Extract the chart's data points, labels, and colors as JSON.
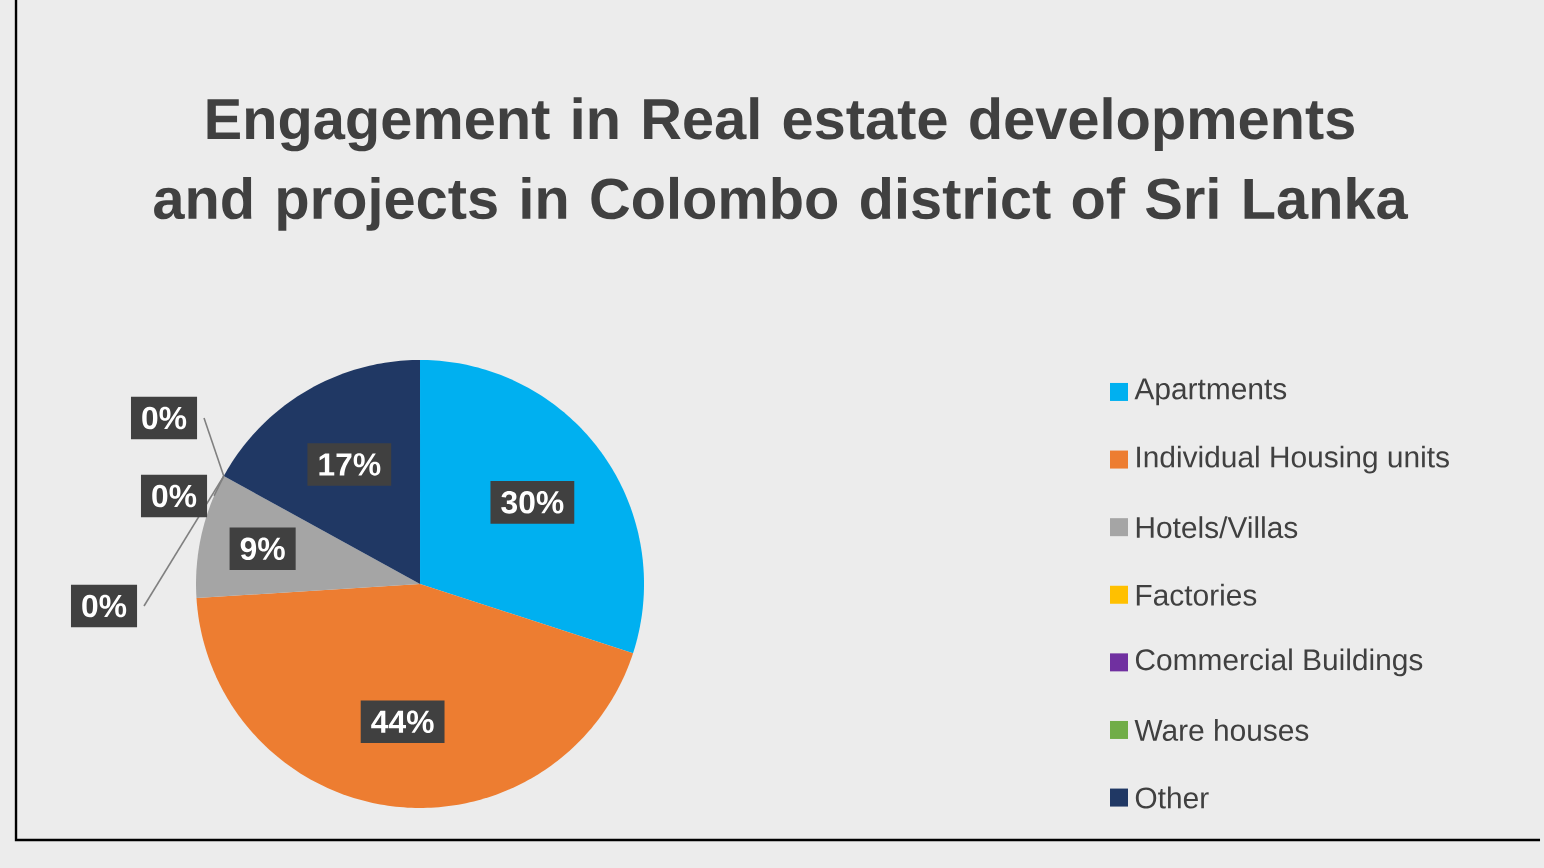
{
  "chart_data": {
    "type": "pie",
    "title": "Engagement in Real estate developments and projects in Colombo district of Sri Lanka",
    "categories": [
      "Apartments",
      "Individual Housing units",
      "Hotels/Villas",
      "Factories",
      "Commercial Buildings",
      "Ware houses",
      "Other"
    ],
    "values": [
      30,
      44,
      9,
      0,
      0,
      0,
      17
    ],
    "colors": [
      "#00b0f0",
      "#ed7d31",
      "#a5a5a5",
      "#ffc000",
      "#7030a0",
      "#70ad47",
      "#203864"
    ],
    "value_labels": [
      "30%",
      "44%",
      "9%",
      "0%",
      "0%",
      "0%",
      "17%"
    ],
    "legend": "right"
  }
}
